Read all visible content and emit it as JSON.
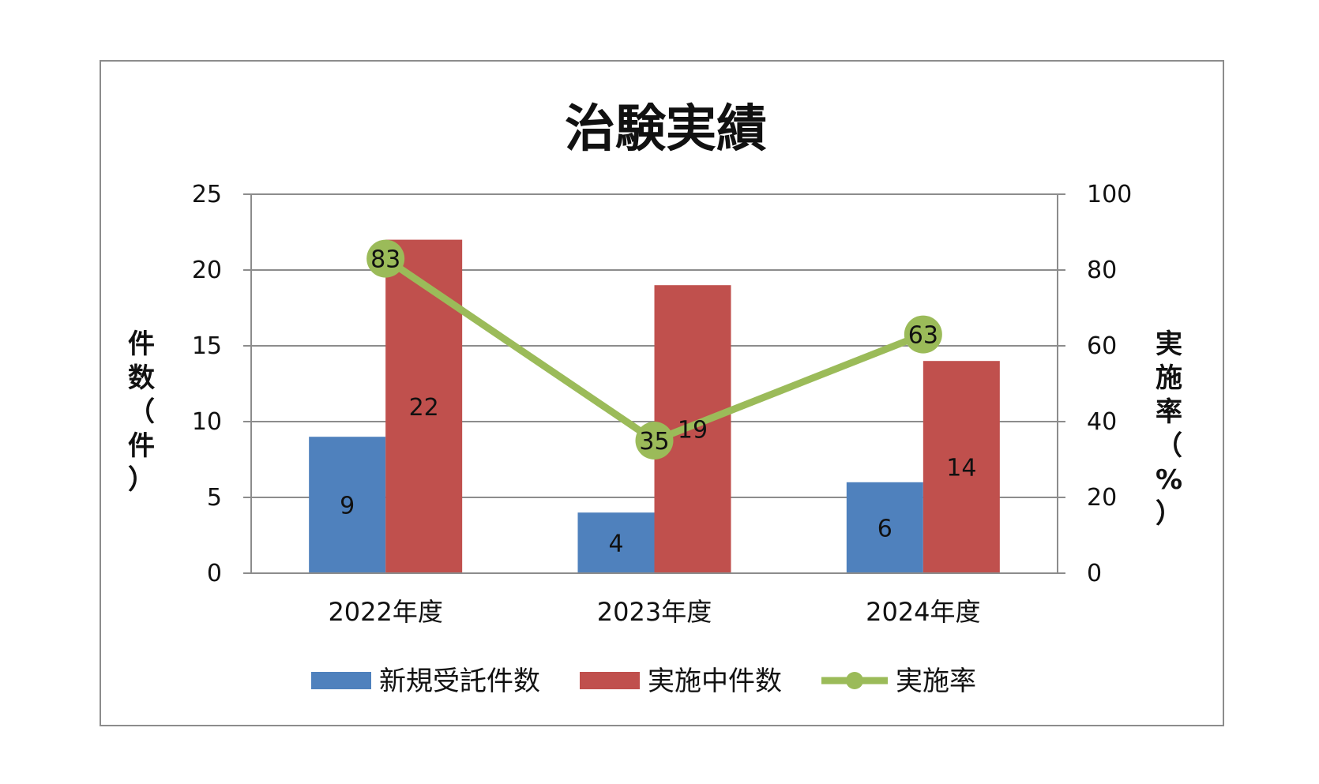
{
  "chart_data": {
    "type": "bar",
    "title": "治験実績",
    "categories": [
      "2022年度",
      "2023年度",
      "2024年度"
    ],
    "series": [
      {
        "name": "新規受託件数",
        "type": "bar",
        "axis": "left",
        "color": "#4f81bd",
        "values": [
          9,
          4,
          6
        ]
      },
      {
        "name": "実施中件数",
        "type": "bar",
        "axis": "left",
        "color": "#c0504d",
        "values": [
          22,
          19,
          14
        ]
      },
      {
        "name": "実施率",
        "type": "line",
        "axis": "right",
        "color": "#9bbb59",
        "values": [
          83,
          35,
          63
        ]
      }
    ],
    "y_left": {
      "label": "件数（件）",
      "lim": [
        0,
        25
      ],
      "ticks": [
        0,
        5,
        10,
        15,
        20,
        25
      ]
    },
    "y_right": {
      "label": "実施率（%）",
      "lim": [
        0,
        100
      ],
      "ticks": [
        0,
        20,
        40,
        60,
        80,
        100
      ]
    },
    "grid": true,
    "legend_position": "bottom"
  }
}
